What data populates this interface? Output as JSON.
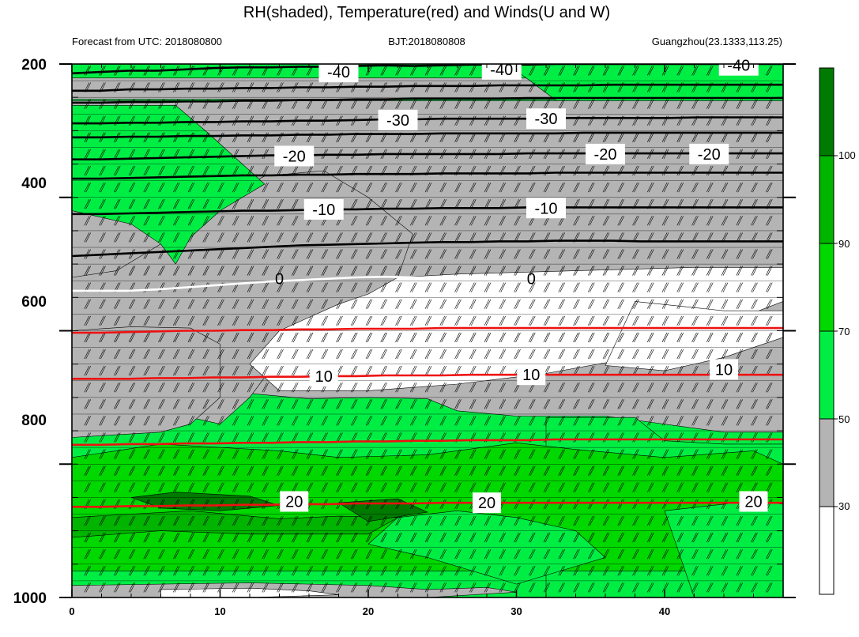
{
  "chart_data": {
    "type": "contour",
    "title": "RH(shaded), Temperature(red) and Winds(U and W)",
    "subtitle_left": "Forecast from UTC: 2018080800",
    "subtitle_center": "BJT:2018080808",
    "subtitle_right": "Guangzhou(23.1333,113.25)",
    "xlim": [
      0,
      48
    ],
    "ylim": [
      1000,
      200
    ],
    "x_ticks": [
      "0",
      "10",
      "20",
      "30",
      "40"
    ],
    "y_ticks": [
      "200",
      "400",
      "600",
      "800",
      "1000"
    ],
    "colorbar": {
      "levels": [
        "30",
        "50",
        "70",
        "90",
        "100"
      ],
      "colors": [
        "#ffffff",
        "#b4b4b4",
        "#00ee44",
        "#00d800",
        "#00b400",
        "#007a00"
      ]
    },
    "colors": {
      "white": "#ffffff",
      "gray": "#b4b4b4",
      "light_green": "#00ee44",
      "green": "#00d800",
      "mid_green": "#00b400",
      "dark_green": "#007a00",
      "temperature_warm": "#ee1111",
      "temperature_zero": "#ffffff",
      "temperature_cold": "#000000"
    },
    "temperature_contours": [
      {
        "level": -40,
        "y": [
          214,
          212,
          210,
          210,
          208,
          206,
          205,
          205,
          204,
          204,
          203,
          202,
          203,
          202,
          201,
          201,
          201,
          200,
          200,
          200,
          200,
          200,
          200,
          200,
          200,
          200
        ]
      },
      {
        "level": -40,
        "y": [
          240,
          240,
          238,
          238,
          237,
          237,
          236,
          236,
          235,
          235,
          234,
          234,
          233,
          233,
          233,
          232,
          232,
          232,
          232,
          231,
          231,
          231,
          231,
          231,
          231,
          231
        ]
      },
      {
        "level": -40,
        "y": [
          258,
          258,
          257,
          257,
          256,
          256,
          255,
          255,
          254,
          254,
          253,
          253,
          252,
          252,
          252,
          252,
          251,
          251,
          251,
          251,
          251,
          251,
          251,
          251,
          251,
          251
        ]
      },
      {
        "level": -30,
        "y": [
          289,
          289,
          288,
          288,
          287,
          287,
          286,
          286,
          285,
          285,
          284,
          283,
          283,
          282,
          282,
          282,
          282,
          281,
          281,
          281,
          281,
          281,
          280,
          280,
          280,
          280
        ]
      },
      {
        "level": -30,
        "y": [
          310,
          310,
          309,
          309,
          308,
          308,
          307,
          307,
          306,
          306,
          305,
          305,
          305,
          304,
          304,
          304,
          304,
          304,
          303,
          303,
          303,
          303,
          303,
          303,
          303,
          303
        ]
      },
      {
        "level": -20,
        "y": [
          343,
          343,
          342,
          341,
          340,
          339,
          338,
          337,
          337,
          336,
          336,
          335,
          335,
          335,
          335,
          335,
          334,
          334,
          334,
          334,
          334,
          334,
          334,
          334,
          334,
          334
        ]
      },
      {
        "level": -20,
        "y": [
          372,
          372,
          371,
          370,
          369,
          368,
          367,
          367,
          366,
          366,
          365,
          365,
          365,
          364,
          364,
          364,
          364,
          363,
          363,
          363,
          363,
          363,
          363,
          363,
          363,
          363
        ]
      },
      {
        "level": -10,
        "y": [
          425,
          425,
          424,
          423,
          422,
          421,
          420,
          420,
          419,
          418,
          418,
          417,
          417,
          416,
          416,
          416,
          415,
          415,
          415,
          415,
          415,
          415,
          415,
          415,
          415,
          415
        ]
      },
      {
        "level": -10,
        "y": [
          488,
          486,
          484,
          482,
          480,
          478,
          476,
          474,
          472,
          471,
          470,
          469,
          468,
          467,
          467,
          466,
          466,
          465,
          465,
          465,
          466,
          466,
          466,
          466,
          466,
          466
        ]
      },
      {
        "level": 0,
        "y": [
          540,
          540,
          540,
          538,
          535,
          532,
          529,
          526,
          524,
          522,
          520,
          519,
          520,
          521,
          522,
          522,
          522,
          522,
          522,
          522,
          522,
          522,
          522,
          522,
          522,
          522
        ]
      },
      {
        "level": 10,
        "y": [
          603,
          603,
          602,
          601,
          600,
          600,
          599,
          599,
          598,
          598,
          597,
          597,
          597,
          596,
          596,
          596,
          596,
          596,
          596,
          596,
          596,
          596,
          596,
          596,
          596,
          596
        ]
      },
      {
        "level": 10,
        "y": [
          672,
          672,
          672,
          671,
          671,
          670,
          670,
          669,
          669,
          668,
          668,
          667,
          667,
          667,
          666,
          666,
          666,
          666,
          666,
          666,
          666,
          666,
          666,
          666,
          666,
          666
        ]
      },
      {
        "level": 20,
        "y": [
          771,
          771,
          770,
          770,
          769,
          769,
          768,
          768,
          767,
          767,
          766,
          766,
          765,
          765,
          764,
          764,
          764,
          763,
          763,
          763,
          763,
          763,
          763,
          763,
          763,
          763
        ]
      },
      {
        "level": 20,
        "y": [
          864,
          864,
          863,
          863,
          862,
          862,
          861,
          861,
          860,
          860,
          859,
          859,
          859,
          858,
          858,
          858,
          858,
          858,
          858,
          858,
          858,
          858,
          858,
          858,
          858,
          858
        ]
      }
    ],
    "temperature_label_values": [
      "-40",
      "-30",
      "-20",
      "-10",
      "0",
      "10",
      "20"
    ]
  }
}
